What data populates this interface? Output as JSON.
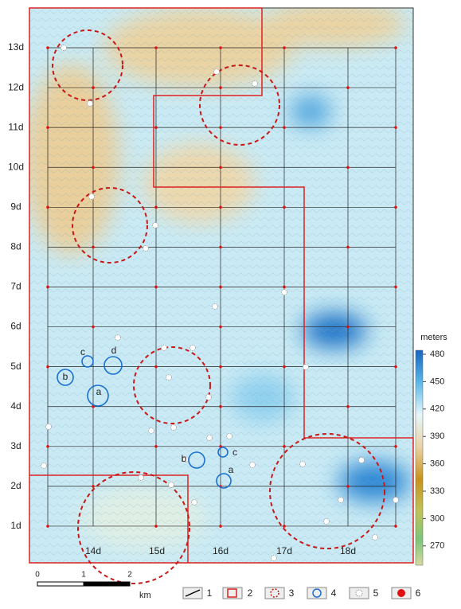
{
  "y_labels": [
    "13d",
    "12d",
    "11d",
    "10d",
    "9d",
    "8d",
    "7d",
    "6d",
    "5d",
    "4d",
    "3d",
    "2d",
    "1d"
  ],
  "x_labels": [
    "14d",
    "15d",
    "16d",
    "17d",
    "18d"
  ],
  "colorbar": {
    "title": "meters",
    "ticks": [
      480,
      450,
      420,
      390,
      360,
      330,
      300,
      270
    ]
  },
  "circles": [
    {
      "label": "c"
    },
    {
      "label": "d"
    },
    {
      "label": "b"
    },
    {
      "label": "a"
    },
    {
      "label": "b"
    },
    {
      "label": "c"
    },
    {
      "label": "a"
    }
  ],
  "scale_bar": {
    "labels": [
      "0",
      "1",
      "2"
    ],
    "unit": "km"
  },
  "legend": [
    "1",
    "2",
    "3",
    "4",
    "5",
    "6"
  ]
}
